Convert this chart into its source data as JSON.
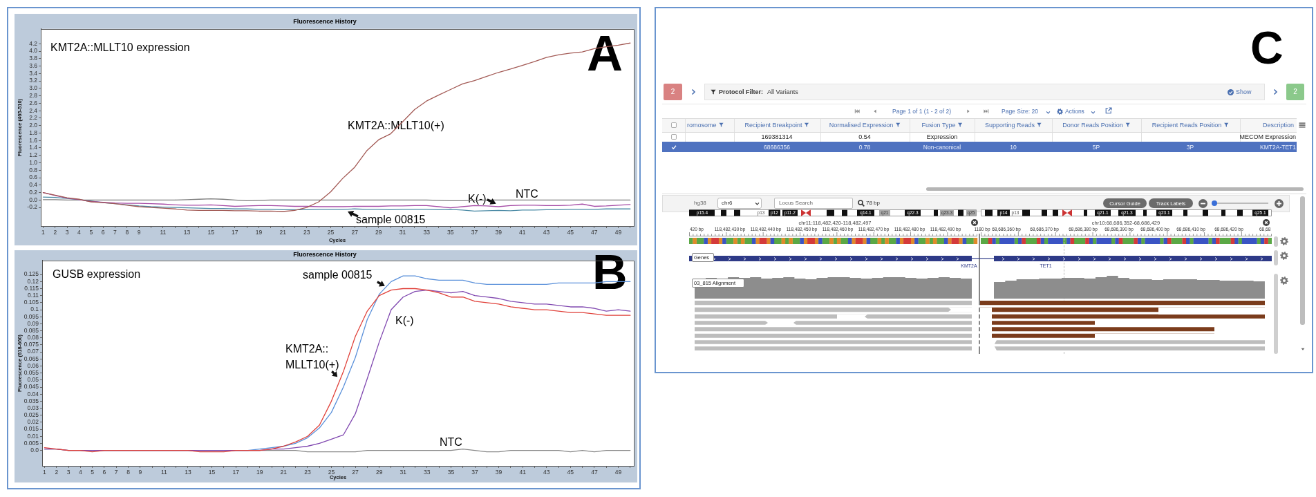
{
  "chart_data": [
    {
      "type": "line",
      "title": "Fluorescence History",
      "subtitle": "KMT2A::MLLT10 expression",
      "xlabel": "Cycles",
      "ylabel": "Fluorescence (465-510)",
      "x": [
        1,
        2,
        3,
        4,
        5,
        6,
        7,
        8,
        9,
        10,
        11,
        12,
        13,
        14,
        15,
        16,
        17,
        18,
        19,
        20,
        21,
        22,
        23,
        24,
        25,
        26,
        27,
        28,
        29,
        30,
        31,
        32,
        33,
        34,
        35,
        36,
        37,
        38,
        39,
        40,
        41,
        42,
        43,
        44,
        45,
        46,
        47,
        48,
        49,
        50
      ],
      "series": [
        {
          "name": "KMT2A::MLLT10(+)",
          "color": "#a35a55",
          "values": [
            0.2,
            0.13,
            0.06,
            0.02,
            -0.05,
            -0.07,
            -0.1,
            -0.14,
            -0.18,
            -0.2,
            -0.22,
            -0.24,
            -0.27,
            -0.28,
            -0.28,
            -0.28,
            -0.29,
            -0.29,
            -0.3,
            -0.3,
            -0.31,
            -0.28,
            -0.2,
            -0.05,
            0.22,
            0.58,
            0.88,
            1.32,
            1.62,
            1.78,
            2.1,
            2.43,
            2.66,
            2.82,
            2.97,
            3.12,
            3.21,
            3.32,
            3.43,
            3.52,
            3.62,
            3.72,
            3.83,
            3.9,
            3.95,
            3.98,
            4.07,
            4.12,
            4.16,
            4.22
          ]
        },
        {
          "name": "K(-)",
          "color": "#a64ca6",
          "values": [
            0.2,
            0.12,
            0.05,
            0.01,
            -0.04,
            -0.06,
            -0.08,
            -0.09,
            -0.09,
            -0.1,
            -0.11,
            -0.13,
            -0.14,
            -0.14,
            -0.13,
            -0.15,
            -0.17,
            -0.16,
            -0.15,
            -0.15,
            -0.16,
            -0.17,
            -0.17,
            -0.18,
            -0.18,
            -0.18,
            -0.17,
            -0.17,
            -0.17,
            -0.16,
            -0.16,
            -0.15,
            -0.15,
            -0.18,
            -0.21,
            -0.18,
            -0.15,
            -0.16,
            -0.18,
            -0.15,
            -0.14,
            -0.14,
            -0.15,
            -0.15,
            -0.14,
            -0.11,
            -0.17,
            -0.16,
            -0.14,
            -0.12
          ]
        },
        {
          "name": "sample 00815",
          "color": "#4b8aa5",
          "values": [
            0.08,
            0.07,
            0.04,
            0.01,
            -0.03,
            -0.07,
            -0.1,
            -0.13,
            -0.16,
            -0.18,
            -0.19,
            -0.2,
            -0.21,
            -0.22,
            -0.23,
            -0.23,
            -0.24,
            -0.24,
            -0.25,
            -0.25,
            -0.26,
            -0.26,
            -0.26,
            -0.25,
            -0.25,
            -0.25,
            -0.24,
            -0.25,
            -0.25,
            -0.26,
            -0.25,
            -0.25,
            -0.25,
            -0.26,
            -0.25,
            -0.27,
            -0.3,
            -0.29,
            -0.28,
            -0.29,
            -0.27,
            -0.27,
            -0.26,
            -0.26,
            -0.25,
            -0.25,
            -0.25,
            -0.24,
            -0.24,
            -0.24
          ]
        },
        {
          "name": "NTC",
          "color": "#7d7d7d",
          "values": [
            0.01,
            0.01,
            0,
            0,
            0,
            0,
            0,
            0,
            0,
            0,
            0,
            0,
            0.01,
            0.02,
            0.03,
            0.02,
            0,
            -0.02,
            -0.01,
            0,
            0,
            0,
            0,
            0,
            0,
            0,
            0,
            0,
            0,
            0,
            0,
            0,
            0,
            -0.01,
            -0.02,
            -0.02,
            -0.01,
            0,
            0,
            0,
            0,
            0,
            0,
            0,
            0,
            0,
            0,
            0,
            0,
            0
          ]
        }
      ],
      "xlim": [
        0.8,
        50.3
      ],
      "xticks": [
        1,
        2,
        3,
        4,
        5,
        6,
        7,
        8,
        9,
        {
          "value": 10,
          "label": null
        },
        11,
        {
          "value": 12,
          "label": null
        },
        13,
        {
          "value": 14,
          "label": null
        },
        15,
        {
          "value": 16,
          "label": null
        },
        17,
        {
          "value": 18,
          "label": null
        },
        19,
        {
          "value": 20,
          "label": null
        },
        21,
        {
          "value": 22,
          "label": null
        },
        23,
        {
          "value": 24,
          "label": null
        },
        25,
        {
          "value": 26,
          "label": null
        },
        27,
        {
          "value": 28,
          "label": null
        },
        29,
        {
          "value": 30,
          "label": null
        },
        31,
        {
          "value": 32,
          "label": null
        },
        33,
        {
          "value": 34,
          "label": null
        },
        35,
        {
          "value": 36,
          "label": null
        },
        37,
        {
          "value": 38,
          "label": null
        },
        39,
        {
          "value": 40,
          "label": null
        },
        41,
        {
          "value": 42,
          "label": null
        },
        43,
        {
          "value": 44,
          "label": null
        },
        45,
        {
          "value": 46,
          "label": null
        },
        47,
        {
          "value": 48,
          "label": null
        },
        49,
        {
          "value": 50,
          "label": null
        }
      ],
      "ylim": [
        -0.7,
        4.6
      ],
      "yticks": [
        -0.2,
        {
          "value": 0,
          "label": "0.0"
        },
        0.2,
        0.4,
        0.6,
        0.8,
        {
          "value": 1,
          "label": "1.0"
        },
        1.2,
        1.4,
        1.6,
        1.8,
        {
          "value": 2,
          "label": "2.0"
        },
        2.2,
        2.4,
        2.6,
        2.8,
        {
          "value": 3,
          "label": "3.0"
        },
        3.2,
        3.4,
        3.6,
        3.8,
        {
          "value": 4,
          "label": "4.0"
        },
        4.2
      ],
      "grid": false,
      "legend": false,
      "marker": "none",
      "line_style": "solid",
      "annotations": [
        "A"
      ]
    },
    {
      "type": "line",
      "title": "Fluorescence History",
      "subtitle": "GUSB expression",
      "xlabel": "Cycles",
      "ylabel": "Fluorescence (618-660)",
      "x": [
        1,
        2,
        3,
        4,
        5,
        6,
        7,
        8,
        9,
        10,
        11,
        12,
        13,
        14,
        15,
        16,
        17,
        18,
        19,
        20,
        21,
        22,
        23,
        24,
        25,
        26,
        27,
        28,
        29,
        30,
        31,
        32,
        33,
        34,
        35,
        36,
        37,
        38,
        39,
        40,
        41,
        42,
        43,
        44,
        45,
        46,
        47,
        48,
        49,
        50
      ],
      "series": [
        {
          "name": "KMT2A::MLLT10(+)",
          "color": "#e0413a",
          "values": [
            0.002,
            0.001,
            0,
            0,
            -0.001,
            0,
            0,
            0,
            0,
            0,
            0,
            0,
            0,
            -0.001,
            -0.001,
            -0.001,
            0,
            0,
            0,
            0.001,
            0.003,
            0.006,
            0.01,
            0.018,
            0.035,
            0.056,
            0.081,
            0.099,
            0.11,
            0.114,
            0.115,
            0.115,
            0.114,
            0.112,
            0.109,
            0.109,
            0.106,
            0.105,
            0.104,
            0.102,
            0.101,
            0.1,
            0.1,
            0.099,
            0.098,
            0.098,
            0.097,
            0.096,
            0.096,
            0.096
          ]
        },
        {
          "name": "K(-)",
          "color": "#8048b0",
          "values": [
            0.001,
            0.001,
            0,
            0,
            0,
            0,
            0,
            0,
            0,
            0,
            0,
            0,
            0,
            0,
            0,
            0,
            0,
            0,
            0,
            0.001,
            0.001,
            0.002,
            0.003,
            0.005,
            0.008,
            0.011,
            0.026,
            0.051,
            0.077,
            0.1,
            0.109,
            0.113,
            0.114,
            0.113,
            0.112,
            0.113,
            0.11,
            0.109,
            0.108,
            0.106,
            0.105,
            0.104,
            0.104,
            0.103,
            0.102,
            0.102,
            0.101,
            0.099,
            0.1,
            0.099
          ]
        },
        {
          "name": "sample 00815",
          "color": "#5a90da",
          "values": [
            null,
            null,
            null,
            0,
            0,
            0,
            0,
            0,
            0,
            0,
            0,
            0,
            0,
            0,
            0,
            0,
            0,
            0,
            0.001,
            0.002,
            0.003,
            0.005,
            0.009,
            0.016,
            0.027,
            0.045,
            0.066,
            0.093,
            0.111,
            0.12,
            0.124,
            0.124,
            0.122,
            0.121,
            0.121,
            0.121,
            0.119,
            0.118,
            0.118,
            0.118,
            0.118,
            0.118,
            0.118,
            0.119,
            0.119,
            0.119,
            0.119,
            0.12,
            0.12,
            0.12
          ]
        },
        {
          "name": "NTC",
          "color": "#888888",
          "values": [
            0.001,
            0.001,
            0,
            0,
            0,
            0,
            0,
            0,
            0,
            0,
            0,
            0,
            0,
            0,
            0,
            0,
            0,
            0,
            0,
            0,
            0,
            0,
            -0.001,
            -0.001,
            -0.001,
            -0.001,
            -0.001,
            0,
            0,
            0,
            0,
            0,
            0,
            0,
            0,
            0.001,
            0,
            -0.001,
            -0.001,
            0,
            0,
            0,
            0,
            0,
            -0.001,
            0,
            -0.001,
            0,
            0,
            0
          ]
        }
      ],
      "xlim": [
        0.8,
        50.3
      ],
      "xticks": [
        1,
        2,
        3,
        4,
        5,
        6,
        7,
        8,
        9,
        {
          "value": 10,
          "label": null
        },
        11,
        {
          "value": 12,
          "label": null
        },
        13,
        {
          "value": 14,
          "label": null
        },
        15,
        {
          "value": 16,
          "label": null
        },
        17,
        {
          "value": 18,
          "label": null
        },
        19,
        {
          "value": 20,
          "label": null
        },
        21,
        {
          "value": 22,
          "label": null
        },
        23,
        {
          "value": 24,
          "label": null
        },
        25,
        {
          "value": 26,
          "label": null
        },
        27,
        {
          "value": 28,
          "label": null
        },
        29,
        {
          "value": 30,
          "label": null
        },
        31,
        {
          "value": 32,
          "label": null
        },
        33,
        {
          "value": 34,
          "label": null
        },
        35,
        {
          "value": 36,
          "label": null
        },
        37,
        {
          "value": 38,
          "label": null
        },
        39,
        {
          "value": 40,
          "label": null
        },
        41,
        {
          "value": 42,
          "label": null
        },
        43,
        {
          "value": 44,
          "label": null
        },
        45,
        {
          "value": 46,
          "label": null
        },
        47,
        {
          "value": 48,
          "label": null
        },
        49,
        {
          "value": 50,
          "label": null
        }
      ],
      "ylim": [
        -0.011,
        0.135
      ],
      "yticks": [
        {
          "value": 0,
          "label": "0.0"
        },
        0.005,
        0.01,
        0.015,
        0.02,
        0.025,
        0.03,
        0.035,
        0.04,
        0.045,
        0.05,
        0.055,
        0.06,
        0.065,
        0.07,
        0.075,
        0.08,
        0.085,
        0.09,
        0.095,
        0.1,
        0.105,
        0.11,
        0.115,
        0.12,
        0.125
      ],
      "grid": false,
      "legend": false,
      "marker": "none",
      "line_style": "solid",
      "annotations": [
        "B"
      ]
    },
    {
      "type": "other",
      "annotations": [
        "C",
        "2",
        "Protocol Filter:",
        "All Variants",
        "Show",
        "2",
        "Page 1 of 1 (1 - 2 of 2)",
        "Page Size: 20",
        "Actions",
        "romosome",
        "Recipient Breakpoint",
        "Normalised Expression",
        "Fusion Type",
        "Supporting Reads",
        "Donor Reads Position",
        "Recipient Reads Position",
        "Description",
        "169381314",
        "0.54",
        "Expression",
        "MECOM Expression",
        "68686356",
        "0.78",
        "Non-canonical",
        "10",
        "5P",
        "3P",
        "KMT2A-TET1",
        "hg38",
        "chr6",
        "Locus Search",
        "78 bp",
        "Cursor Guide",
        "Track Labels",
        "chr11:118,482,420-118,482,497",
        "chr10:68,686,352-68,686,429",
        "420 bp",
        "118,482,430 bp",
        "118,482,440 bp",
        "118,482,450 bp",
        "118,482,460 bp",
        "118,482,470 bp",
        "118,482,480 bp",
        "118,482,490 bp",
        "68,686,360 bp",
        "68,686,370 bp",
        "68,686,380 bp",
        "68,686,390 bp",
        "68,686,400 bp",
        "68,686,410 bp",
        "68,686,420 bp",
        "68,68",
        "Genes",
        "KMT2A",
        "TET1",
        "03_815 Alignment",
        "1180 bp",
        "p15.4",
        "p13",
        "p12",
        "p11.2",
        "q14.1",
        "q21",
        "q22.3",
        "q23.3",
        "q25",
        "p14",
        "p13",
        "q21.1",
        "q21.3",
        "q23.1",
        "q25.1"
      ]
    }
  ]
}
